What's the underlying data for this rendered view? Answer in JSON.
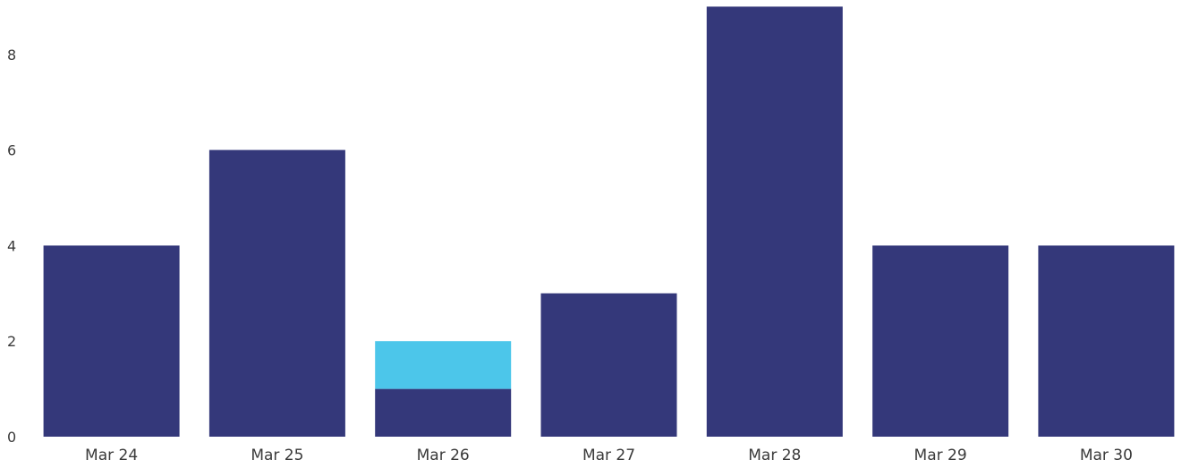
{
  "chart_data": {
    "type": "bar",
    "stacked": true,
    "categories": [
      "Mar 24",
      "Mar 25",
      "Mar 26",
      "Mar 27",
      "Mar 28",
      "Mar 29",
      "Mar 30"
    ],
    "series": [
      {
        "values": [
          4,
          6,
          1,
          3,
          9,
          4,
          4
        ],
        "color": "#34387a"
      },
      {
        "values": [
          0,
          0,
          1,
          0,
          0,
          0,
          0
        ],
        "color": "#4cc6ea"
      }
    ],
    "y_ticks": [
      "0",
      "2",
      "4",
      "6",
      "8"
    ],
    "ylim": [
      0,
      9
    ],
    "grid": false,
    "legend": "none",
    "title": "",
    "xlabel": "",
    "ylabel": ""
  }
}
